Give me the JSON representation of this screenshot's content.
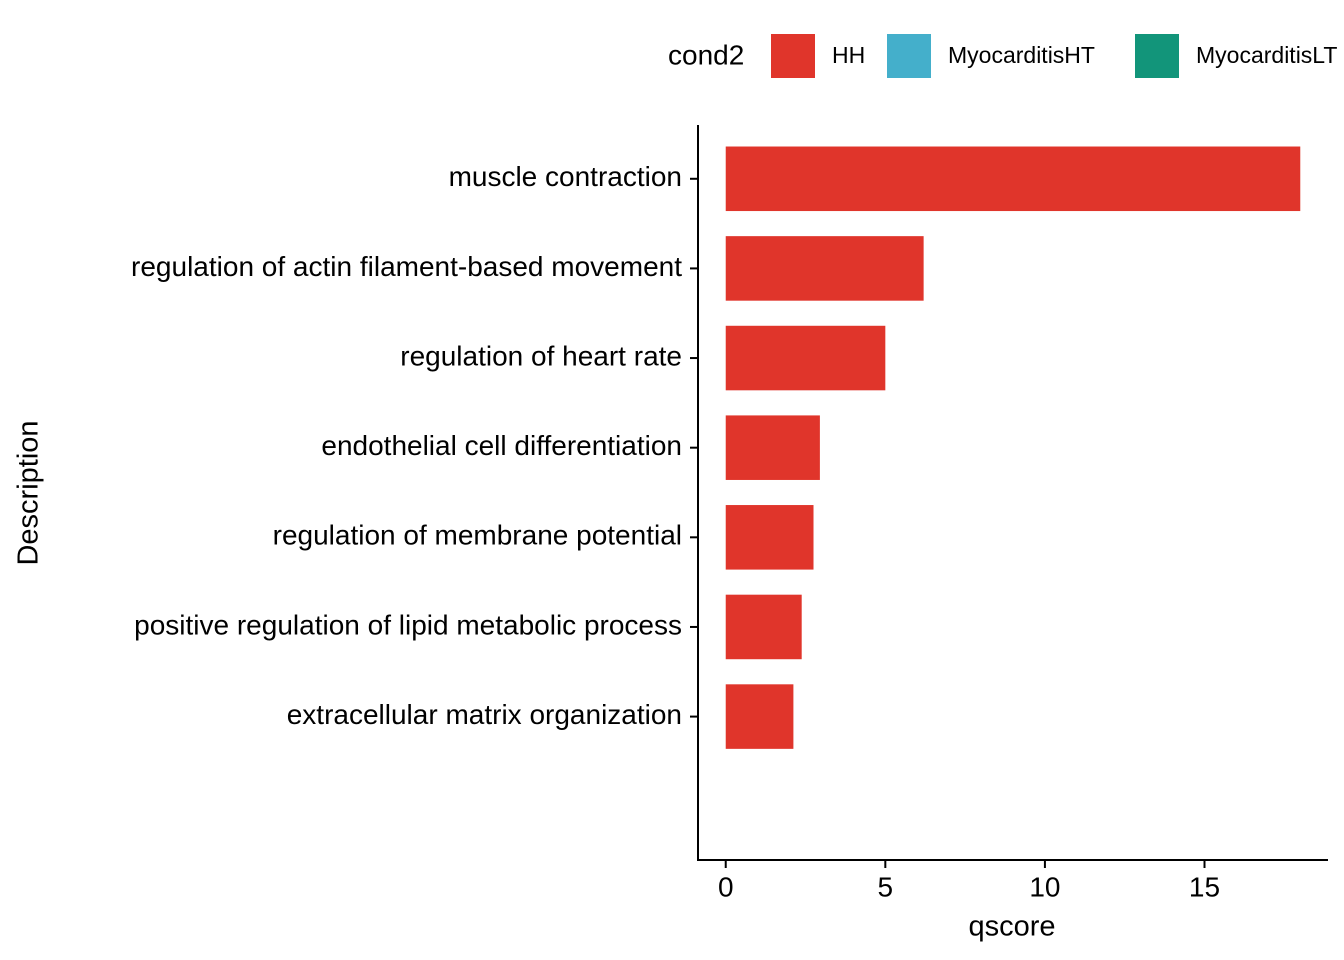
{
  "chart_data": {
    "type": "hbar",
    "xlabel": "qscore",
    "ylabel": "Description",
    "legend_title": "cond2",
    "legend": "top",
    "categories": [
      "muscle contraction",
      "regulation of actin filament-based movement",
      "regulation of heart rate",
      "endothelial cell differentiation",
      "regulation of membrane potential",
      "positive regulation of lipid metabolic process",
      "extracellular matrix organization"
    ],
    "series": [
      {
        "name": "HH",
        "color": "#e0352b",
        "values": [
          18.0,
          6.2,
          5.0,
          2.95,
          2.75,
          2.38,
          2.12
        ]
      },
      {
        "name": "MyocarditisHT",
        "color": "#44afcb",
        "values": [
          null,
          null,
          null,
          null,
          null,
          null,
          null
        ]
      },
      {
        "name": "MyocarditisLT",
        "color": "#12957a",
        "values": [
          null,
          null,
          null,
          null,
          null,
          null,
          null
        ]
      }
    ],
    "xlim": [
      -0.9,
      18.9
    ],
    "xticks": [
      0,
      5,
      10,
      15
    ]
  }
}
